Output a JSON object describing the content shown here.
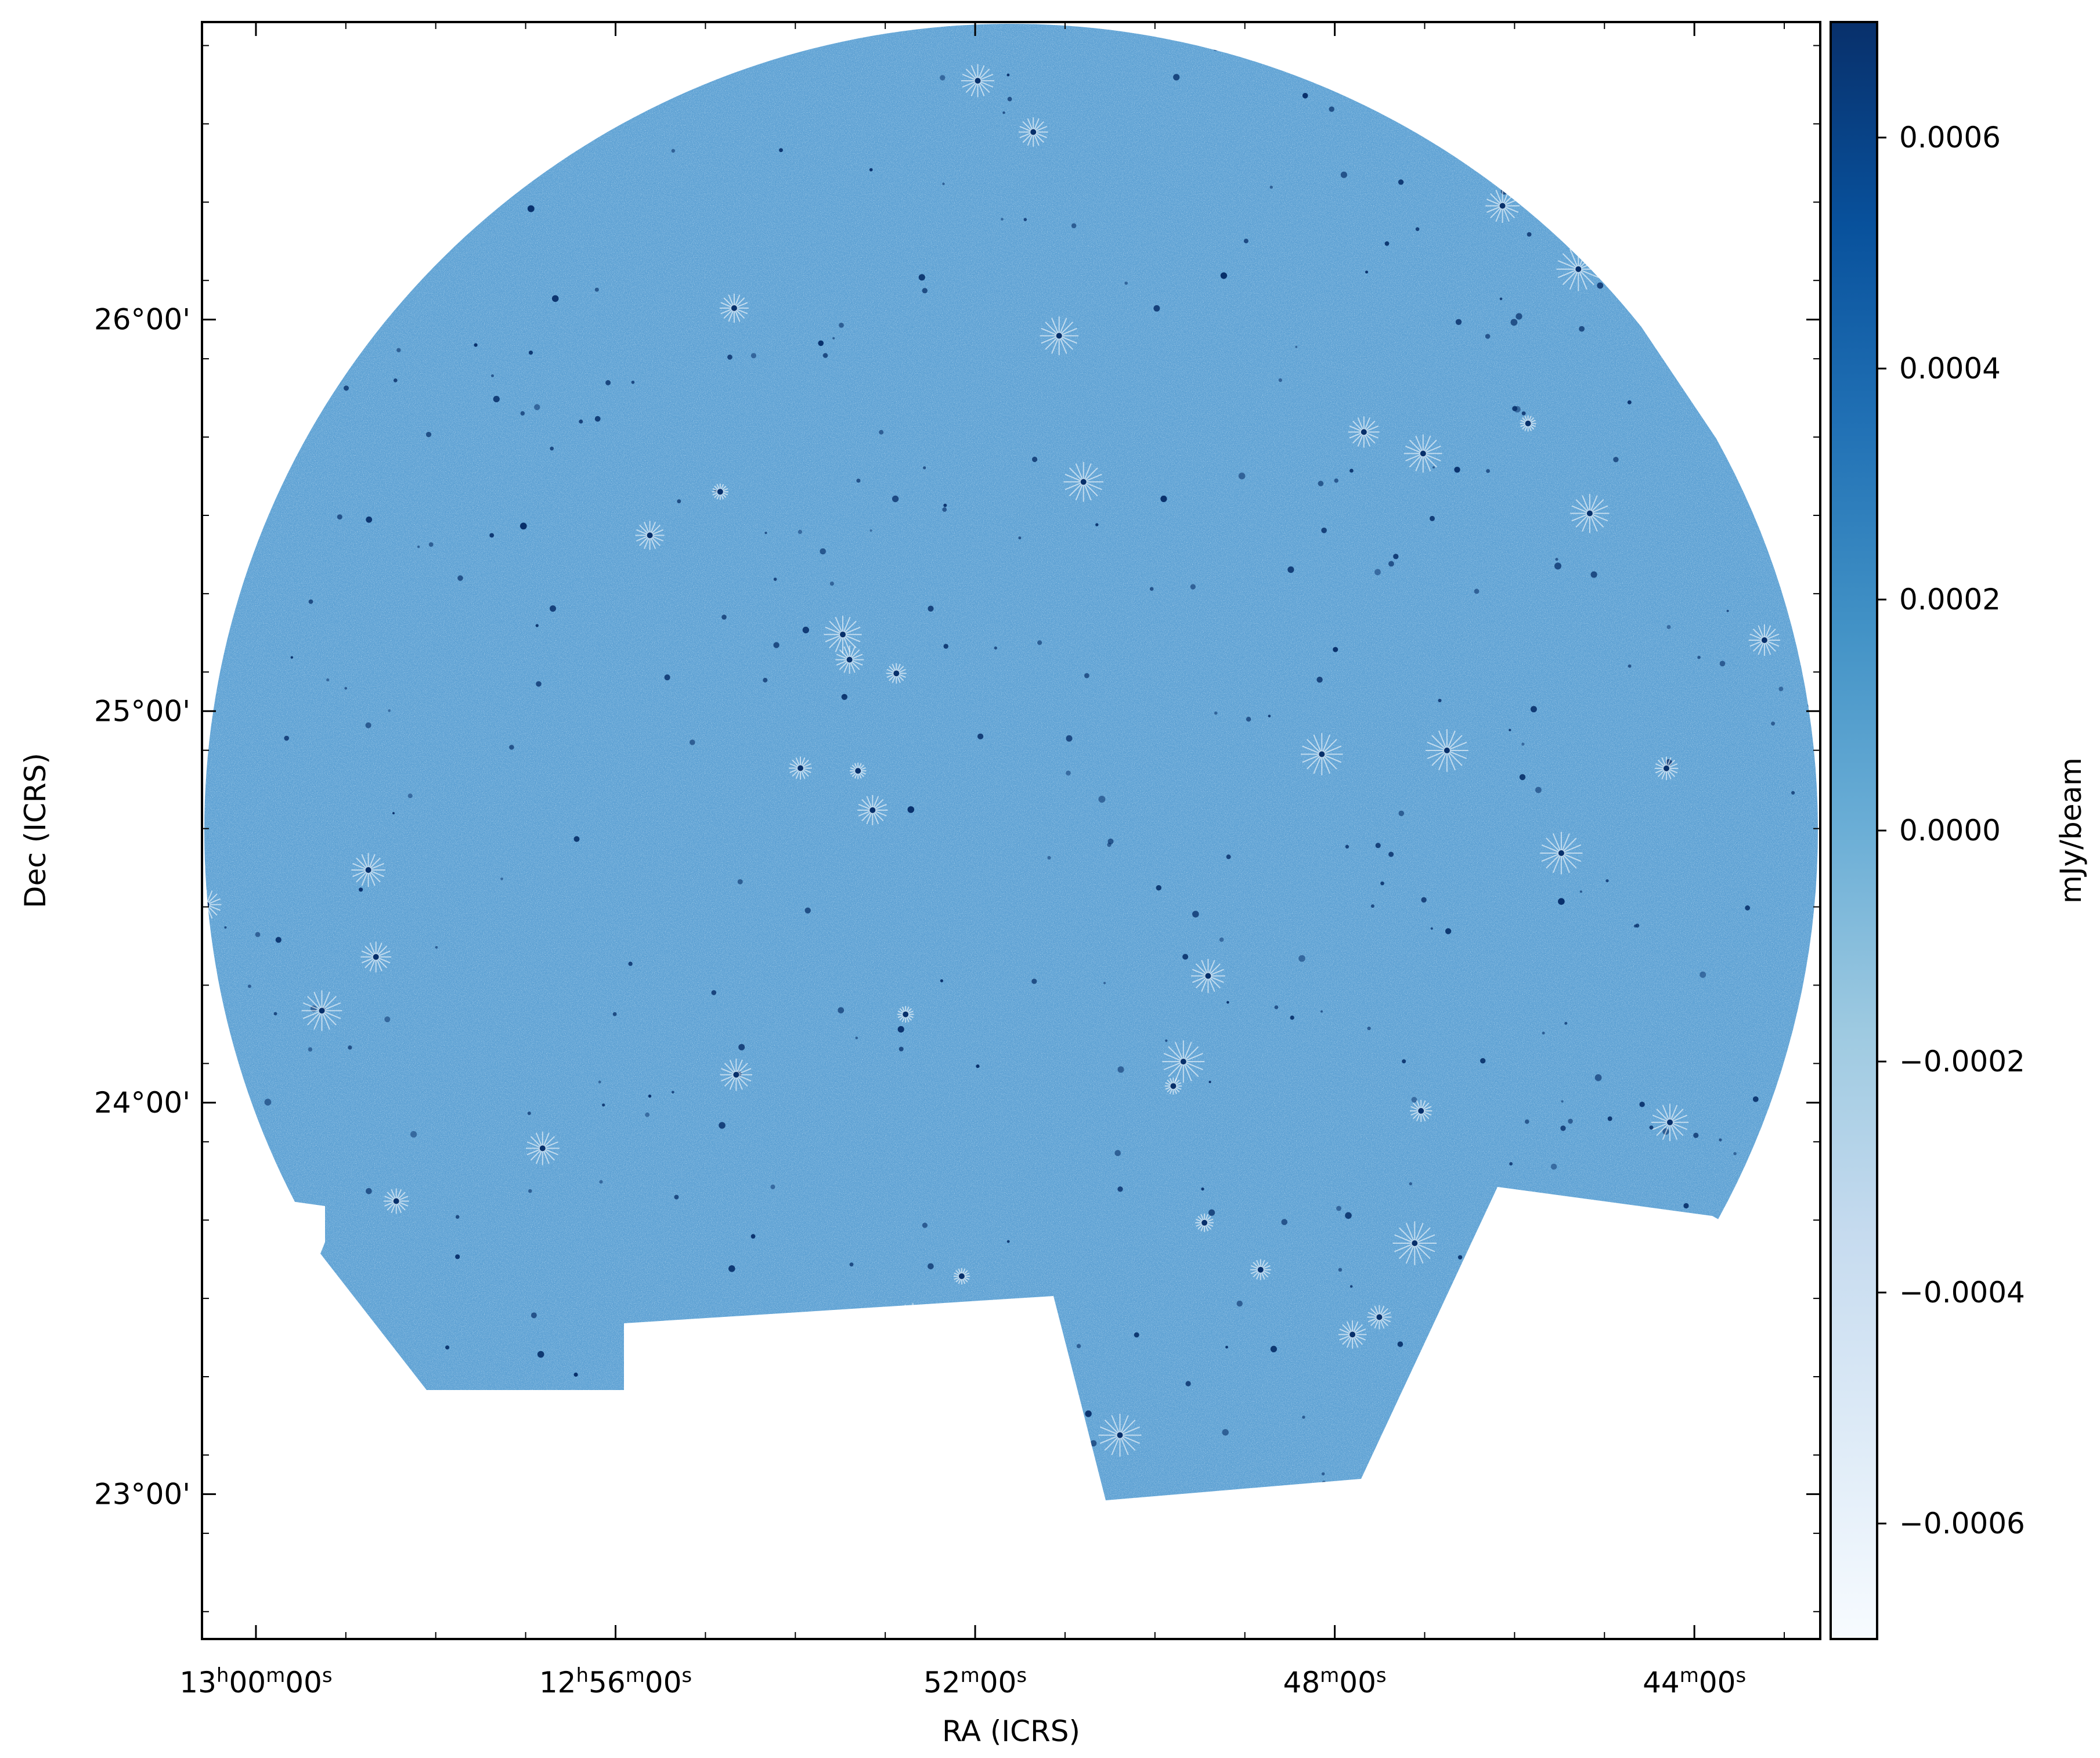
{
  "chart_data": {
    "type": "heatmap",
    "description_note": "",
    "xlabel": "RA (ICRS)",
    "ylabel": "Dec (ICRS)",
    "x_ticks": [
      {
        "label_main": "13",
        "sup1": "h",
        "mid": "00",
        "sup2": "m",
        "end": "00",
        "sup3": "s",
        "ra_min": 780.0
      },
      {
        "label_main": "12",
        "sup1": "h",
        "mid": "56",
        "sup2": "m",
        "end": "00",
        "sup3": "s",
        "ra_min": 776.0
      },
      {
        "label_main": "",
        "sup1": "",
        "mid": "52",
        "sup2": "m",
        "end": "00",
        "sup3": "s",
        "ra_min": 772.0
      },
      {
        "label_main": "",
        "sup1": "",
        "mid": "48",
        "sup2": "m",
        "end": "00",
        "sup3": "s",
        "ra_min": 768.0
      },
      {
        "label_main": "",
        "sup1": "",
        "mid": "44",
        "sup2": "m",
        "end": "00",
        "sup3": "s",
        "ra_min": 764.0
      }
    ],
    "y_ticks": [
      {
        "label": "26°00'",
        "dec": 26.0
      },
      {
        "label": "25°00'",
        "dec": 25.0
      },
      {
        "label": "24°00'",
        "dec": 24.0
      },
      {
        "label": "23°00'",
        "dec": 23.0
      }
    ],
    "ra_range_min": [
      780.6,
      762.6
    ],
    "dec_range": [
      22.63,
      26.76
    ],
    "colorbar": {
      "label": "mJy/beam",
      "range": [
        -0.0007,
        0.0007
      ],
      "ticks": [
        {
          "label": "0.0006",
          "value": 0.0006
        },
        {
          "label": "0.0004",
          "value": 0.0004
        },
        {
          "label": "0.0002",
          "value": 0.0002
        },
        {
          "label": "0.0000",
          "value": 0.0
        },
        {
          "label": "−0.0002",
          "value": -0.0002
        },
        {
          "label": "−0.0004",
          "value": -0.0004
        },
        {
          "label": "−0.0006",
          "value": -0.0006
        }
      ],
      "colormap": "Blues",
      "colors": [
        "#f7fbff",
        "#deebf7",
        "#c6dbef",
        "#9ecae1",
        "#6baed6",
        "#4292c6",
        "#2171b5",
        "#08519c",
        "#08306b"
      ]
    },
    "map_fill_color": "#5fa2d4",
    "map_noise_color": "#8cbde3",
    "source_color": "#08306b"
  }
}
